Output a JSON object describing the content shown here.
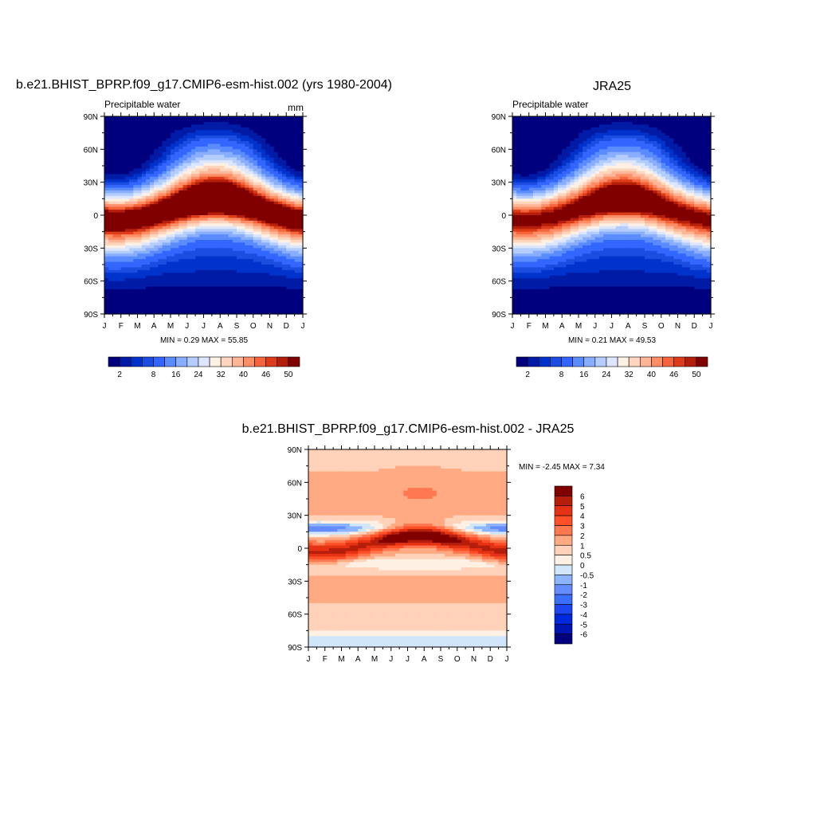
{
  "panels": [
    {
      "id": "model",
      "title": "b.e21.BHIST_BPRP.f09_g17.CMIP6-esm-hist.002 (yrs 1980-2004)",
      "left_string": "Precipitable water",
      "right_string": "mm",
      "stats": "MIN =   0.29 MAX =  55.85"
    },
    {
      "id": "obs",
      "title": "JRA25",
      "left_string": "Precipitable water",
      "right_string": "",
      "stats": "MIN =   0.21 MAX =  49.53"
    },
    {
      "id": "diff",
      "title": "b.e21.BHIST_BPRP.f09_g17.CMIP6-esm-hist.002 - JRA25",
      "left_string": "",
      "right_string": "",
      "stats": "MIN =  -2.45 MAX =   7.34"
    }
  ],
  "chart_data": [
    {
      "type": "heatmap",
      "title": "b.e21.BHIST_BPRP.f09_g17.CMIP6-esm-hist.002 (yrs 1980-2004)",
      "variable": "Precipitable water",
      "units": "mm",
      "x_tick_labels": [
        "J",
        "F",
        "M",
        "A",
        "M",
        "J",
        "J",
        "A",
        "S",
        "O",
        "N",
        "D",
        "J"
      ],
      "y_tick_labels": [
        "90N",
        "60N",
        "30N",
        "0",
        "30S",
        "60S",
        "90S"
      ],
      "y_tick_values": [
        90,
        60,
        30,
        0,
        -30,
        -60,
        -90
      ],
      "xlim": [
        0,
        12
      ],
      "ylim": [
        -90,
        90
      ],
      "min": 0.29,
      "max": 55.85,
      "colorbar_labels": [
        "2",
        "8",
        "16",
        "24",
        "32",
        "40",
        "46",
        "50"
      ],
      "contour_levels": [
        2,
        4,
        6,
        8,
        12,
        16,
        20,
        24,
        28,
        32,
        36,
        40,
        44,
        46,
        48,
        50
      ],
      "colors": [
        "#00007f",
        "#001ba6",
        "#0033cc",
        "#1a4de0",
        "#3366ff",
        "#5b8cff",
        "#8aaeff",
        "#b4cdff",
        "#dce7ff",
        "#fff0e4",
        "#ffd5bd",
        "#ffb696",
        "#ff8e66",
        "#f5643a",
        "#dc3c18",
        "#b41e0a",
        "#800000"
      ],
      "approx_zonal_mean_jan": [
        {
          "lat": 90,
          "value": 3
        },
        {
          "lat": 60,
          "value": 8
        },
        {
          "lat": 30,
          "value": 26
        },
        {
          "lat": 0,
          "value": 48
        },
        {
          "lat": -30,
          "value": 26
        },
        {
          "lat": -60,
          "value": 10
        },
        {
          "lat": -90,
          "value": 1
        }
      ],
      "approx_zonal_mean_jul": [
        {
          "lat": 90,
          "value": 16
        },
        {
          "lat": 60,
          "value": 22
        },
        {
          "lat": 30,
          "value": 38
        },
        {
          "lat": 0,
          "value": 54
        },
        {
          "lat": -30,
          "value": 16
        },
        {
          "lat": -60,
          "value": 6
        },
        {
          "lat": -90,
          "value": 0.5
        }
      ]
    },
    {
      "type": "heatmap",
      "title": "JRA25",
      "variable": "Precipitable water",
      "x_tick_labels": [
        "J",
        "F",
        "M",
        "A",
        "M",
        "J",
        "J",
        "A",
        "S",
        "O",
        "N",
        "D",
        "J"
      ],
      "y_tick_labels": [
        "90N",
        "60N",
        "30N",
        "0",
        "30S",
        "60S",
        "90S"
      ],
      "y_tick_values": [
        90,
        60,
        30,
        0,
        -30,
        -60,
        -90
      ],
      "xlim": [
        0,
        12
      ],
      "ylim": [
        -90,
        90
      ],
      "min": 0.21,
      "max": 49.53,
      "colorbar_labels": [
        "2",
        "8",
        "16",
        "24",
        "32",
        "40",
        "46",
        "50"
      ],
      "contour_levels": [
        2,
        4,
        6,
        8,
        12,
        16,
        20,
        24,
        28,
        32,
        36,
        40,
        44,
        46,
        48,
        50
      ],
      "colors": [
        "#00007f",
        "#001ba6",
        "#0033cc",
        "#1a4de0",
        "#3366ff",
        "#5b8cff",
        "#8aaeff",
        "#b4cdff",
        "#dce7ff",
        "#fff0e4",
        "#ffd5bd",
        "#ffb696",
        "#ff8e66",
        "#f5643a",
        "#dc3c18",
        "#b41e0a",
        "#800000"
      ],
      "approx_zonal_mean_jan": [
        {
          "lat": 90,
          "value": 2
        },
        {
          "lat": 60,
          "value": 7
        },
        {
          "lat": 30,
          "value": 24
        },
        {
          "lat": 0,
          "value": 44
        },
        {
          "lat": -30,
          "value": 26
        },
        {
          "lat": -60,
          "value": 10
        },
        {
          "lat": -90,
          "value": 1
        }
      ],
      "approx_zonal_mean_jul": [
        {
          "lat": 90,
          "value": 15
        },
        {
          "lat": 60,
          "value": 21
        },
        {
          "lat": 30,
          "value": 36
        },
        {
          "lat": 0,
          "value": 48
        },
        {
          "lat": -30,
          "value": 15
        },
        {
          "lat": -60,
          "value": 5
        },
        {
          "lat": -90,
          "value": 0.5
        }
      ]
    },
    {
      "type": "heatmap",
      "title": "b.e21.BHIST_BPRP.f09_g17.CMIP6-esm-hist.002 - JRA25",
      "x_tick_labels": [
        "J",
        "F",
        "M",
        "A",
        "M",
        "J",
        "J",
        "A",
        "S",
        "O",
        "N",
        "D",
        "J"
      ],
      "y_tick_labels": [
        "90N",
        "60N",
        "30N",
        "0",
        "30S",
        "60S",
        "90S"
      ],
      "y_tick_values": [
        90,
        60,
        30,
        0,
        -30,
        -60,
        -90
      ],
      "xlim": [
        0,
        12
      ],
      "ylim": [
        -90,
        90
      ],
      "min": -2.45,
      "max": 7.34,
      "colorbar_labels": [
        "6",
        "5",
        "4",
        "3",
        "2",
        "1",
        "0.5",
        "0",
        "-0.5",
        "-1",
        "-2",
        "-3",
        "-4",
        "-5",
        "-6"
      ],
      "contour_levels": [
        -6,
        -5,
        -4,
        -3,
        -2,
        -1,
        -0.5,
        0,
        0.5,
        1,
        2,
        3,
        4,
        5,
        6
      ],
      "colors": [
        "#00007f",
        "#0014b4",
        "#0028dc",
        "#1e46f0",
        "#3c6eff",
        "#648cff",
        "#8cb4ff",
        "#d2e6fa",
        "#fff0e4",
        "#ffd2b9",
        "#ffaa82",
        "#ff7850",
        "#ff5028",
        "#e63214",
        "#b41e0a",
        "#800000"
      ]
    }
  ]
}
